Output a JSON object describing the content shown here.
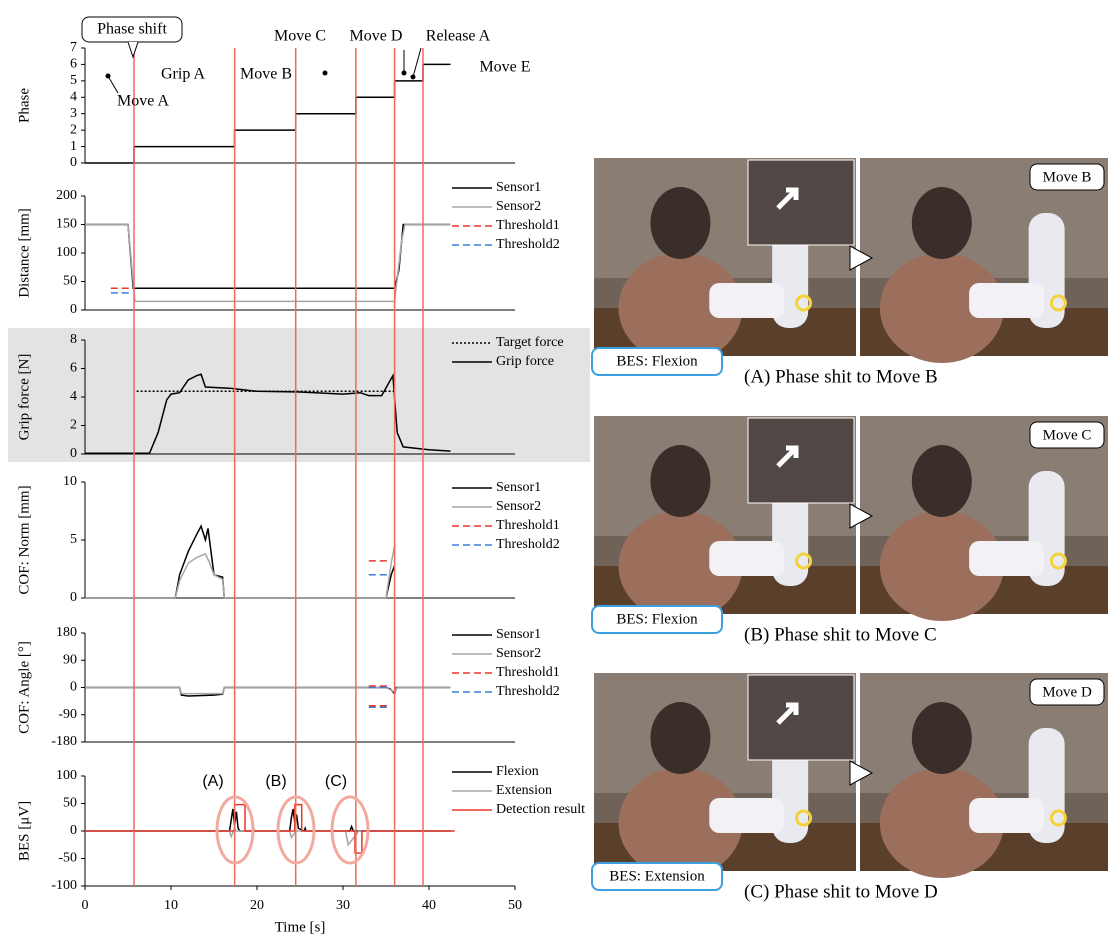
{
  "chart_data": [
    {
      "type": "line",
      "ylabel": "Phase",
      "xlim": [
        0,
        50
      ],
      "ylim": [
        0,
        7
      ],
      "yticks": [
        0,
        1,
        2,
        3,
        4,
        5,
        6,
        7
      ],
      "annotations": [
        "Phase shift",
        "Move A",
        "Grip A",
        "Move B",
        "Move C",
        "Move D",
        "Release A",
        "Move E"
      ],
      "series": [
        {
          "color": "#000000",
          "x": [
            0,
            5.7,
            5.7,
            17.4,
            17.4,
            24.5,
            24.5,
            31.5,
            31.5,
            36,
            36,
            39.3,
            39.3,
            42.5
          ],
          "values": [
            0,
            0,
            1,
            1,
            2,
            2,
            3,
            3,
            4,
            4,
            5,
            5,
            6,
            6
          ]
        }
      ]
    },
    {
      "type": "line",
      "ylabel": "Distance [mm]",
      "xlim": [
        0,
        50
      ],
      "ylim": [
        0,
        200
      ],
      "yticks": [
        0,
        50,
        100,
        150,
        200
      ],
      "series": [
        {
          "name": "Sensor1",
          "color": "#000000",
          "x": [
            0,
            5,
            5.6,
            36,
            36.5,
            37,
            42.5
          ],
          "values": [
            150,
            150,
            38,
            38,
            70,
            150,
            150
          ]
        },
        {
          "name": "Sensor2",
          "color": "#a6a6a6",
          "x": [
            0,
            5,
            5.8,
            36,
            36.8,
            37.2,
            42.5
          ],
          "values": [
            150,
            150,
            15,
            15,
            120,
            150,
            150
          ]
        },
        {
          "name": "Threshold1",
          "color": "#e8372c",
          "dash": "dashed",
          "x": [
            3,
            5.3
          ],
          "values": [
            38,
            38
          ]
        },
        {
          "name": "Threshold2",
          "color": "#3a7fd5",
          "dash": "dashed",
          "x": [
            3,
            5.3
          ],
          "values": [
            30,
            30
          ]
        }
      ]
    },
    {
      "type": "line",
      "ylabel": "Grip force [N]",
      "background": "#e3e3e3",
      "xlim": [
        0,
        50
      ],
      "ylim": [
        0,
        8
      ],
      "yticks": [
        0,
        2,
        4,
        6,
        8
      ],
      "series": [
        {
          "name": "Target force",
          "color": "#000000",
          "dash": "dotted",
          "x": [
            6,
            36
          ],
          "values": [
            4.4,
            4.4
          ]
        },
        {
          "name": "Grip force",
          "color": "#000000",
          "x": [
            0,
            7.5,
            8.5,
            9.5,
            10,
            11,
            12,
            13,
            13.5,
            14,
            17,
            20,
            25,
            30,
            32,
            33,
            34.5,
            35.8,
            36.3,
            37,
            40,
            42.5
          ],
          "values": [
            0.05,
            0.05,
            1.5,
            3.8,
            4.2,
            4.3,
            5.2,
            5.5,
            5.6,
            4.7,
            4.6,
            4.4,
            4.35,
            4.2,
            4.3,
            4.1,
            4.1,
            5.5,
            1.5,
            0.5,
            0.3,
            0.2
          ]
        }
      ]
    },
    {
      "type": "line",
      "ylabel": "COF: Norm [mm]",
      "xlim": [
        0,
        50
      ],
      "ylim": [
        0,
        10
      ],
      "yticks": [
        0,
        5,
        10
      ],
      "series": [
        {
          "name": "Sensor1",
          "color": "#000000",
          "x": [
            0,
            10.5,
            11,
            12,
            13,
            13.5,
            14,
            14.3,
            15,
            16,
            16.2,
            35,
            35.6,
            36
          ],
          "values": [
            0,
            0,
            2,
            4,
            5.5,
            6.2,
            5,
            6,
            2,
            1.8,
            0,
            0,
            2,
            2.8
          ]
        },
        {
          "name": "Sensor2",
          "color": "#a6a6a6",
          "x": [
            0,
            10.5,
            11,
            12,
            13,
            14,
            14.5,
            15,
            16,
            16.2,
            35,
            35.6,
            36
          ],
          "values": [
            0,
            0,
            1.5,
            3,
            3.5,
            3.8,
            3,
            2,
            1.6,
            0,
            0,
            3,
            4.5
          ]
        },
        {
          "name": "Threshold1",
          "color": "#e8372c",
          "dash": "dashed",
          "x": [
            33,
            35.5
          ],
          "values": [
            3.2,
            3.2
          ]
        },
        {
          "name": "Threshold2",
          "color": "#3a7fd5",
          "dash": "dashed",
          "x": [
            33,
            35.5
          ],
          "values": [
            2,
            2
          ]
        }
      ]
    },
    {
      "type": "line",
      "ylabel": "COF: Angle [°]",
      "xlim": [
        0,
        50
      ],
      "ylim": [
        -180,
        180
      ],
      "yticks": [
        -180,
        -90,
        0,
        90,
        180
      ],
      "series": [
        {
          "name": "Sensor1",
          "color": "#000000",
          "x": [
            0,
            11,
            11.2,
            12,
            15,
            16,
            16.2,
            35,
            35.5,
            36,
            36.2,
            42.5
          ],
          "values": [
            0,
            0,
            -25,
            -28,
            -25,
            -22,
            0,
            0,
            -5,
            -20,
            0,
            0
          ]
        },
        {
          "name": "Sensor2",
          "color": "#a6a6a6",
          "x": [
            0,
            11,
            11.2,
            16,
            16.2,
            35,
            36,
            36.3,
            42.5
          ],
          "values": [
            0,
            0,
            -20,
            -20,
            0,
            0,
            -15,
            0,
            0
          ]
        },
        {
          "name": "Threshold1",
          "color": "#e8372c",
          "dash": "dashed",
          "x": [
            33,
            35.5,
            null,
            33,
            35.5
          ],
          "values": [
            5,
            5,
            null,
            -60,
            -60
          ]
        },
        {
          "name": "Threshold2",
          "color": "#3a7fd5",
          "dash": "dashed",
          "x": [
            33,
            35.5,
            null,
            33,
            35.5
          ],
          "values": [
            0,
            0,
            null,
            -65,
            -65
          ]
        }
      ]
    },
    {
      "type": "line",
      "ylabel": "BES [μV]",
      "xlabel": "Time [s]",
      "xlim": [
        0,
        50
      ],
      "xticks": [
        0,
        10,
        20,
        30,
        40,
        50
      ],
      "ylim": [
        -100,
        100
      ],
      "yticks": [
        -100,
        -50,
        0,
        50,
        100
      ],
      "annotations": [
        "(A)",
        "(B)",
        "(C)"
      ],
      "series": [
        {
          "name": "Flexion",
          "color": "#000000",
          "x": [
            0,
            16.8,
            17,
            17.2,
            17.4,
            17.6,
            17.8,
            18,
            19.5,
            19.6,
            19.7,
            23.8,
            24,
            24.2,
            24.4,
            24.6,
            24.8,
            25.5,
            25.6,
            25.7,
            30.8,
            31,
            31.2,
            42.5
          ],
          "values": [
            0,
            0,
            20,
            40,
            10,
            35,
            5,
            0,
            0,
            5,
            0,
            0,
            25,
            40,
            15,
            30,
            5,
            0,
            5,
            0,
            0,
            8,
            0,
            0
          ]
        },
        {
          "name": "Extension",
          "color": "#a6a6a6",
          "x": [
            0,
            16.8,
            17,
            17.4,
            17.6,
            23.8,
            24,
            24.3,
            24.6,
            30.3,
            30.6,
            31.6,
            31.8,
            42.5
          ],
          "values": [
            0,
            0,
            -10,
            5,
            0,
            0,
            -12,
            -5,
            0,
            0,
            -25,
            -5,
            0,
            0
          ]
        },
        {
          "name": "Detection result",
          "color": "#e8372c",
          "x": [
            0,
            17.4,
            17.4,
            18.6,
            18.6,
            24.4,
            24.4,
            25.2,
            25.2,
            31.4,
            31.4,
            32.2,
            32.2,
            43
          ],
          "values": [
            0,
            0,
            48,
            48,
            0,
            0,
            48,
            48,
            0,
            0,
            -40,
            -40,
            0,
            0
          ]
        }
      ]
    }
  ],
  "event_times": [
    5.7,
    17.4,
    24.5,
    31.5,
    36,
    39.3
  ],
  "photos": [
    {
      "label": "Move B",
      "bes": "BES: Flexion",
      "caption": "(A) Phase shit to Move B"
    },
    {
      "label": "Move C",
      "bes": "BES: Flexion",
      "caption": "(B) Phase shit to Move C"
    },
    {
      "label": "Move D",
      "bes": "BES: Extension",
      "caption": "(C) Phase shit to Move D"
    }
  ]
}
